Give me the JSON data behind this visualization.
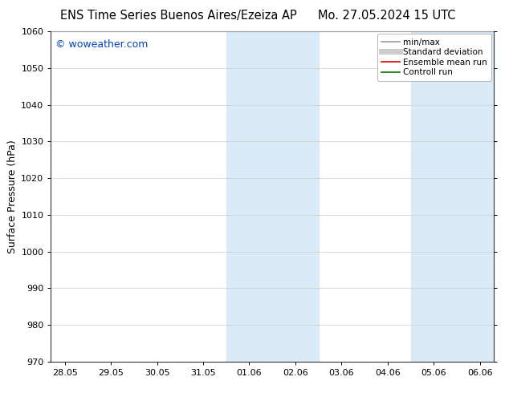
{
  "title_left": "ENS Time Series Buenos Aires/Ezeiza AP",
  "title_right": "Mo. 27.05.2024 15 UTC",
  "ylabel": "Surface Pressure (hPa)",
  "ylim": [
    970,
    1060
  ],
  "yticks": [
    970,
    980,
    990,
    1000,
    1010,
    1020,
    1030,
    1040,
    1050,
    1060
  ],
  "xtick_labels": [
    "28.05",
    "29.05",
    "30.05",
    "31.05",
    "01.06",
    "02.06",
    "03.06",
    "04.06",
    "05.06",
    "06.06"
  ],
  "xtick_positions": [
    0,
    1,
    2,
    3,
    4,
    5,
    6,
    7,
    8,
    9
  ],
  "xlim": [
    -0.3,
    9.3
  ],
  "shaded_regions": [
    {
      "xmin": 3.5,
      "xmax": 5.5,
      "color": "#daeaf6"
    },
    {
      "xmin": 7.5,
      "xmax": 9.3,
      "color": "#daeaf6"
    }
  ],
  "watermark": "© woweather.com",
  "watermark_color": "#0044bb",
  "legend_items": [
    {
      "label": "min/max",
      "color": "#999999",
      "linewidth": 1.2
    },
    {
      "label": "Standard deviation",
      "color": "#cccccc",
      "linewidth": 5
    },
    {
      "label": "Ensemble mean run",
      "color": "#dd0000",
      "linewidth": 1.2
    },
    {
      "label": "Controll run",
      "color": "#007700",
      "linewidth": 1.2
    }
  ],
  "bg_color": "#ffffff",
  "grid_color": "#cccccc",
  "title_fontsize": 10.5,
  "tick_fontsize": 8,
  "ylabel_fontsize": 9,
  "watermark_fontsize": 9,
  "legend_fontsize": 7.5
}
